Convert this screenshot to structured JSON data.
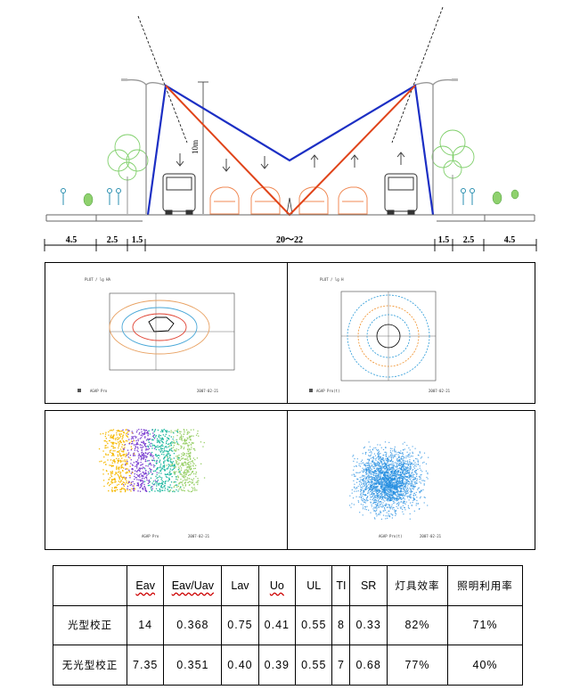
{
  "figure": {
    "height_label": "10m",
    "dimensions": [
      "4.5",
      "2.5",
      "1.5",
      "20～22",
      "1.5",
      "2.5",
      "4.5"
    ]
  },
  "panels": {
    "isolux_left": {
      "title": "PLOT / lg HA",
      "caption": "AGAP Pro",
      "date": "2007-02-21"
    },
    "isolux_right": {
      "title": "PLOT / lg H",
      "caption": "AGAP Pro(t)",
      "date": "2007-02-21"
    },
    "scatter_left": {
      "caption": "AGAP Pro",
      "date": "2007-02-21"
    },
    "scatter_right": {
      "caption": "AGAP Pro(t)",
      "date": "2007-02-21"
    }
  },
  "colors": {
    "blue_line": "#1c2fc4",
    "red_line": "#e0441a",
    "scatter_blue": "#1f8be0"
  },
  "table": {
    "headers": [
      "",
      "Eav",
      "Eav/Uav",
      "Lav",
      "Uo",
      "UL",
      "TI",
      "SR",
      "灯具效率",
      "照明利用率"
    ],
    "rows": [
      {
        "label": "光型校正",
        "values": [
          "14",
          "0.368",
          "0.75",
          "0.41",
          "0.55",
          "8",
          "0.33",
          "82%",
          "71%"
        ]
      },
      {
        "label": "无光型校正",
        "values": [
          "7.35",
          "0.351",
          "0.40",
          "0.39",
          "0.55",
          "7",
          "0.68",
          "77%",
          "40%"
        ]
      }
    ]
  }
}
